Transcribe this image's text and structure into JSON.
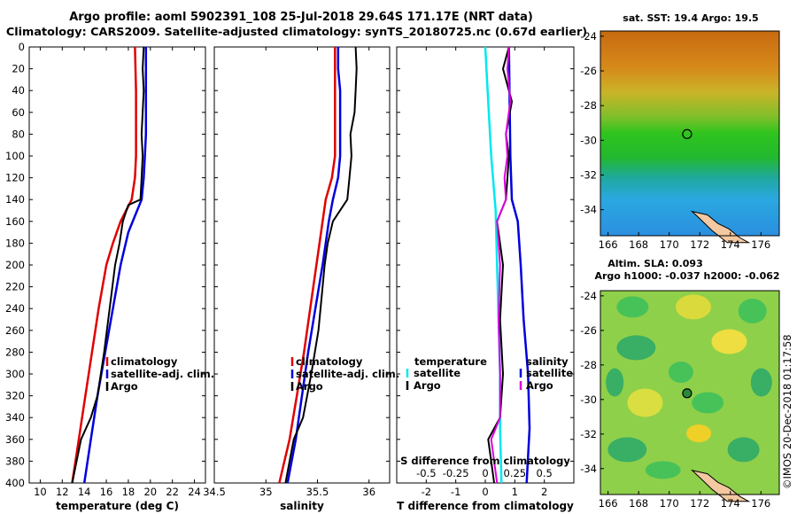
{
  "title_line1": "Argo profile: aoml 5902391_108 25-Jul-2018 29.64S 171.17E (NRT data)",
  "title_line2": "Climatology: CARS2009. Satellite-adjusted climatology: synTS_20180725.nc (0.67d earlier)",
  "colors": {
    "climatology": "#e00000",
    "satellite": "#0000dd",
    "argo": "#000000",
    "cyan": "#00e8f0",
    "magenta": "#dd00dd"
  },
  "depth_axis": {
    "ylim": [
      0,
      400
    ],
    "ticks": [
      "0",
      "20",
      "40",
      "60",
      "80",
      "100",
      "120",
      "140",
      "160",
      "180",
      "200",
      "220",
      "240",
      "260",
      "280",
      "300",
      "320",
      "340",
      "360",
      "380",
      "400"
    ]
  },
  "chart_data": [
    {
      "type": "line",
      "name": "temperature",
      "xlabel": "temperature (deg C)",
      "xlim": [
        9,
        25
      ],
      "xticks": [
        "10",
        "12",
        "14",
        "16",
        "18",
        "20",
        "22",
        "24"
      ],
      "xtick_values": [
        10,
        12,
        14,
        16,
        18,
        20,
        22,
        24
      ],
      "legend": [
        "climatology",
        "satellite-adj. clim.",
        "Argo"
      ],
      "series": [
        {
          "name": "climatology",
          "depth": [
            0,
            20,
            40,
            60,
            80,
            100,
            120,
            140,
            160,
            180,
            200,
            240,
            280,
            320,
            360,
            400
          ],
          "values": [
            18.6,
            18.65,
            18.7,
            18.7,
            18.7,
            18.7,
            18.6,
            18.3,
            17.3,
            16.6,
            16.0,
            15.3,
            14.7,
            14.1,
            13.5,
            12.9
          ]
        },
        {
          "name": "satellite-adj. clim.",
          "depth": [
            0,
            20,
            40,
            60,
            80,
            100,
            120,
            140,
            150,
            170,
            200,
            240,
            280,
            320,
            360,
            400
          ],
          "values": [
            19.6,
            19.6,
            19.6,
            19.6,
            19.6,
            19.5,
            19.4,
            19.2,
            18.8,
            18.0,
            17.3,
            16.6,
            15.9,
            15.2,
            14.6,
            14.0
          ]
        },
        {
          "name": "Argo",
          "depth": [
            0,
            20,
            40,
            60,
            80,
            100,
            120,
            140,
            145,
            160,
            180,
            200,
            240,
            280,
            320,
            340,
            360,
            380,
            400
          ],
          "values": [
            19.4,
            19.3,
            19.4,
            19.3,
            19.2,
            19.3,
            19.2,
            19.1,
            18.0,
            17.5,
            17.2,
            16.8,
            16.3,
            15.8,
            15.2,
            14.6,
            13.7,
            13.3,
            12.9
          ]
        }
      ]
    },
    {
      "type": "line",
      "name": "salinity",
      "xlabel": "salinity",
      "xlim": [
        34.5,
        36.2
      ],
      "xticks": [
        "34.5",
        "35",
        "35.5",
        "36"
      ],
      "xtick_values": [
        34.5,
        35,
        35.5,
        36
      ],
      "legend": [
        "climatology",
        "satellite-adj. clim.",
        "Argo"
      ],
      "series": [
        {
          "name": "climatology",
          "depth": [
            0,
            20,
            40,
            60,
            80,
            100,
            120,
            140,
            160,
            180,
            200,
            240,
            280,
            320,
            360,
            400
          ],
          "values": [
            35.67,
            35.67,
            35.67,
            35.67,
            35.67,
            35.67,
            35.64,
            35.58,
            35.55,
            35.52,
            35.49,
            35.43,
            35.37,
            35.3,
            35.23,
            35.13
          ]
        },
        {
          "name": "satellite-adj. clim.",
          "depth": [
            0,
            20,
            40,
            60,
            80,
            100,
            120,
            140,
            160,
            180,
            200,
            240,
            280,
            320,
            360,
            400
          ],
          "values": [
            35.7,
            35.7,
            35.72,
            35.72,
            35.72,
            35.72,
            35.7,
            35.65,
            35.61,
            35.58,
            35.55,
            35.48,
            35.41,
            35.35,
            35.29,
            35.21
          ]
        },
        {
          "name": "Argo",
          "depth": [
            0,
            20,
            40,
            60,
            80,
            100,
            120,
            140,
            160,
            180,
            200,
            220,
            260,
            300,
            340,
            360,
            380,
            400
          ],
          "values": [
            35.87,
            35.88,
            35.87,
            35.86,
            35.82,
            35.83,
            35.81,
            35.79,
            35.65,
            35.6,
            35.57,
            35.55,
            35.51,
            35.44,
            35.36,
            35.27,
            35.23,
            35.19
          ]
        }
      ]
    },
    {
      "type": "line",
      "name": "difference",
      "xlabel": "T difference from climatology",
      "x2label": "S difference from climatology",
      "xlim": [
        -3,
        3
      ],
      "xticks": [
        "-2",
        "-1",
        "0",
        "1",
        "2"
      ],
      "xtick_values": [
        -2,
        -1,
        0,
        1,
        2
      ],
      "x2ticks": [
        "-0.5",
        "-0.25",
        "0",
        "0.25",
        "0.5"
      ],
      "x2tick_values": [
        -2,
        -1,
        0,
        1,
        2
      ],
      "legend_left": [
        "temperature",
        "satellite",
        "Argo"
      ],
      "legend_right": [
        "salinity",
        "satellite",
        "Argo"
      ],
      "series": [
        {
          "name": "T satellite",
          "depth": [
            0,
            50,
            100,
            150,
            200,
            250,
            300,
            350,
            400
          ],
          "values": [
            0.0,
            0.1,
            0.2,
            0.35,
            0.4,
            0.45,
            0.5,
            0.5,
            0.55
          ]
        },
        {
          "name": "S satellite",
          "depth": [
            0,
            100,
            140,
            160,
            200,
            250,
            300,
            350,
            400
          ],
          "values": [
            0.8,
            0.85,
            0.9,
            1.1,
            1.2,
            1.3,
            1.45,
            1.5,
            1.4
          ]
        },
        {
          "name": "T Argo",
          "depth": [
            0,
            20,
            50,
            80,
            100,
            140,
            160,
            200,
            250,
            300,
            340,
            360,
            380,
            400
          ],
          "values": [
            0.8,
            0.6,
            0.9,
            0.7,
            0.8,
            0.7,
            0.4,
            0.6,
            0.5,
            0.6,
            0.5,
            0.1,
            0.2,
            0.3
          ]
        },
        {
          "name": "S Argo",
          "depth": [
            0,
            20,
            50,
            80,
            100,
            120,
            140,
            160,
            200,
            250,
            300,
            340,
            360,
            380,
            400
          ],
          "values": [
            0.8,
            0.75,
            0.85,
            0.7,
            0.75,
            0.65,
            0.7,
            0.4,
            0.5,
            0.45,
            0.5,
            0.5,
            0.2,
            0.3,
            0.4
          ]
        }
      ]
    }
  ],
  "maps": [
    {
      "title": "sat. SST: 19.4 Argo: 19.5",
      "yticks": [
        "-24",
        "-26",
        "-28",
        "-30",
        "-32",
        "-34"
      ],
      "xticks": [
        "166",
        "168",
        "170",
        "172",
        "174",
        "176"
      ]
    },
    {
      "title1": "Altim. SLA: 0.093",
      "title2": "Argo h1000: -0.037 h2000: -0.062",
      "yticks": [
        "-24",
        "-26",
        "-28",
        "-30",
        "-32",
        "-34"
      ],
      "xticks": [
        "166",
        "168",
        "170",
        "172",
        "174",
        "176"
      ]
    }
  ],
  "footer": "©IMOS 20-Dec-2018 01:17:58"
}
